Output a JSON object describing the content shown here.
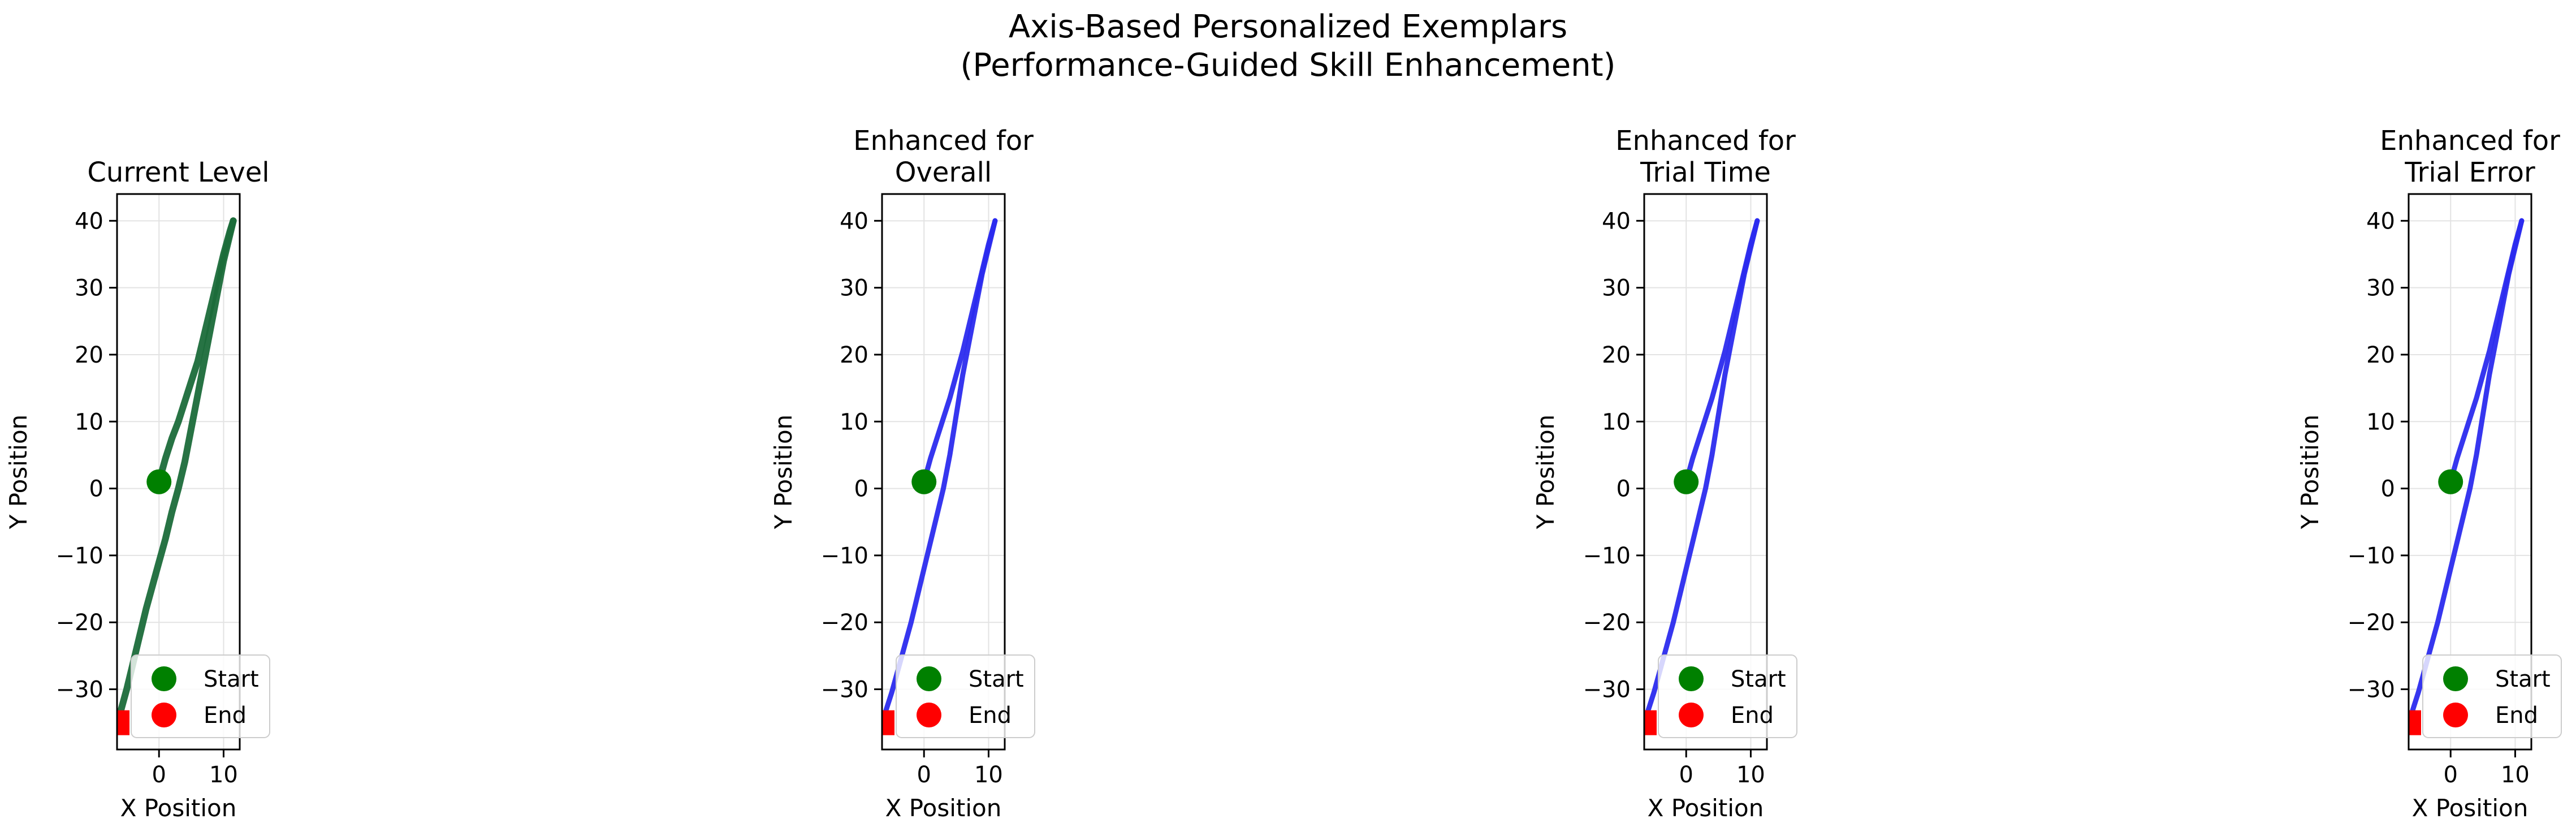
{
  "suptitle": [
    "Axis-Based Personalized Exemplars",
    "(Performance-Guided Skill Enhancement)"
  ],
  "colors": {
    "current": "#1b6b3a",
    "enhanced": "#2b2bee",
    "start": "#008000",
    "end": "#ff0000"
  },
  "chart_data": [
    {
      "type": "line",
      "title": [
        "Current Level"
      ],
      "xlabel": "X Position",
      "ylabel": "Y Position",
      "xlim": [
        -6.5,
        12.5
      ],
      "ylim": [
        -39,
        44
      ],
      "xticks": [
        0,
        10
      ],
      "yticks": [
        -30,
        -20,
        -10,
        0,
        10,
        20,
        30,
        40
      ],
      "grid": true,
      "legend": {
        "position": "lower-right",
        "entries": [
          "Start",
          "End"
        ]
      },
      "color_key": "current",
      "series": [
        {
          "x": [
            0,
            1,
            2,
            3,
            4,
            5,
            6,
            7,
            8,
            9,
            10,
            11,
            11.5
          ],
          "y": [
            1,
            4.5,
            7.5,
            10,
            13,
            16,
            19,
            23,
            27,
            31,
            35,
            38.5,
            40
          ]
        },
        {
          "x": [
            11.5,
            11,
            10,
            9,
            8,
            7,
            6,
            5,
            4,
            3,
            2,
            1,
            0,
            -1,
            -2,
            -3,
            -4,
            -5,
            -6,
            -6.5
          ],
          "y": [
            40,
            38,
            34,
            29,
            24,
            19,
            14,
            9,
            4,
            0,
            -3.5,
            -7.5,
            -11,
            -14.5,
            -18,
            -22,
            -26,
            -30,
            -33.5,
            -35
          ]
        }
      ],
      "start": {
        "x": 0,
        "y": 1
      },
      "end": {
        "x": -6.5,
        "y": -35
      }
    },
    {
      "type": "line",
      "title": [
        "Enhanced for",
        "Overall"
      ],
      "xlabel": "X Position",
      "ylabel": "Y Position",
      "xlim": [
        -6.5,
        12.5
      ],
      "ylim": [
        -39,
        44
      ],
      "xticks": [
        0,
        10
      ],
      "yticks": [
        -30,
        -20,
        -10,
        0,
        10,
        20,
        30,
        40
      ],
      "grid": true,
      "legend": {
        "position": "lower-right",
        "entries": [
          "Start",
          "End"
        ]
      },
      "color_key": "enhanced",
      "series": [
        {
          "x": [
            0,
            1,
            2,
            3,
            4,
            5,
            6,
            7,
            8,
            9,
            10,
            11
          ],
          "y": [
            1,
            4.5,
            7.5,
            10.5,
            13.5,
            17,
            20.5,
            24.5,
            28.5,
            32.5,
            36.5,
            40
          ]
        },
        {
          "x": [
            11,
            10.5,
            10,
            9,
            8,
            7,
            6,
            5,
            4,
            3,
            2,
            1,
            0,
            -1,
            -2,
            -3,
            -4,
            -5,
            -6,
            -6.5
          ],
          "y": [
            40,
            38,
            36,
            32,
            27,
            22,
            17,
            11,
            5,
            0,
            -4,
            -8,
            -12,
            -16,
            -20,
            -23.5,
            -27,
            -30.5,
            -33.5,
            -35
          ]
        }
      ],
      "start": {
        "x": 0,
        "y": 1
      },
      "end": {
        "x": -6.5,
        "y": -35
      }
    },
    {
      "type": "line",
      "title": [
        "Enhanced for",
        "Trial Time"
      ],
      "xlabel": "X Position",
      "ylabel": "Y Position",
      "xlim": [
        -6.5,
        12.5
      ],
      "ylim": [
        -39,
        44
      ],
      "xticks": [
        0,
        10
      ],
      "yticks": [
        -30,
        -20,
        -10,
        0,
        10,
        20,
        30,
        40
      ],
      "grid": true,
      "legend": {
        "position": "lower-right",
        "entries": [
          "Start",
          "End"
        ]
      },
      "color_key": "enhanced",
      "series": [
        {
          "x": [
            0,
            1,
            2,
            3,
            4,
            5,
            6,
            7,
            8,
            9,
            10,
            11
          ],
          "y": [
            1,
            4.5,
            7.5,
            10.5,
            13.5,
            17,
            20.5,
            24.5,
            28.5,
            32.5,
            36.5,
            40
          ]
        },
        {
          "x": [
            11,
            10.5,
            10,
            9,
            8,
            7,
            6,
            5,
            4,
            3,
            2,
            1,
            0,
            -1,
            -2,
            -3,
            -4,
            -5,
            -6,
            -6.5
          ],
          "y": [
            40,
            38,
            36,
            32,
            27,
            22,
            17,
            11,
            5,
            0,
            -4,
            -8,
            -12,
            -16,
            -20,
            -23.5,
            -27,
            -30.5,
            -33.5,
            -35
          ]
        }
      ],
      "start": {
        "x": 0,
        "y": 1
      },
      "end": {
        "x": -6.5,
        "y": -35
      }
    },
    {
      "type": "line",
      "title": [
        "Enhanced for",
        "Trial Error"
      ],
      "xlabel": "X Position",
      "ylabel": "Y Position",
      "xlim": [
        -6.5,
        12.5
      ],
      "ylim": [
        -39,
        44
      ],
      "xticks": [
        0,
        10
      ],
      "yticks": [
        -30,
        -20,
        -10,
        0,
        10,
        20,
        30,
        40
      ],
      "grid": true,
      "legend": {
        "position": "lower-right",
        "entries": [
          "Start",
          "End"
        ]
      },
      "color_key": "enhanced",
      "series": [
        {
          "x": [
            0,
            1,
            2,
            3,
            4,
            5,
            6,
            7,
            8,
            9,
            10,
            11
          ],
          "y": [
            1,
            4.5,
            7.5,
            10.5,
            13.5,
            17,
            20.5,
            24.5,
            28.5,
            32.5,
            36.5,
            40
          ]
        },
        {
          "x": [
            11,
            10.5,
            10,
            9,
            8,
            7,
            6,
            5,
            4,
            3,
            2,
            1,
            0,
            -1,
            -2,
            -3,
            -4,
            -5,
            -6,
            -6.5
          ],
          "y": [
            40,
            38,
            36,
            32,
            27,
            22,
            17,
            11,
            5,
            0,
            -4,
            -8,
            -12,
            -16,
            -20,
            -23.5,
            -27,
            -30.5,
            -33.5,
            -35
          ]
        }
      ],
      "start": {
        "x": 0,
        "y": 1
      },
      "end": {
        "x": -6.5,
        "y": -35
      }
    }
  ]
}
